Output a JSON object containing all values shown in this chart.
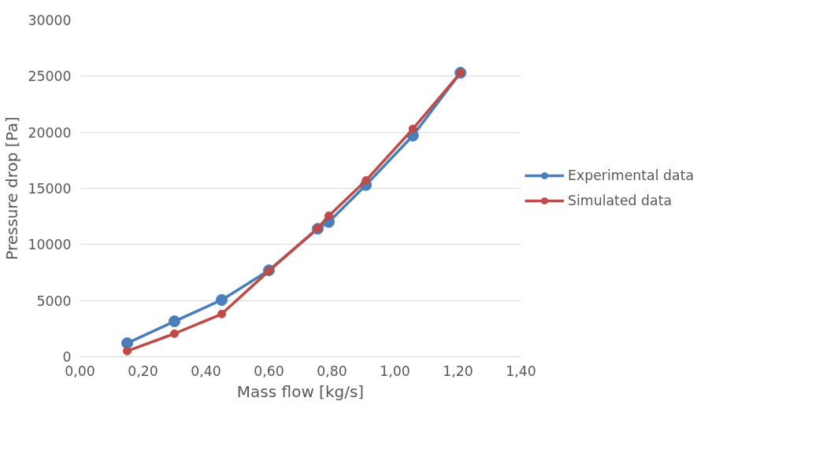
{
  "chart_data": {
    "type": "line",
    "xlabel": "Mass flow [kg/s]",
    "ylabel": "Pressure drop [Pa]",
    "xlim": [
      0,
      1.4
    ],
    "ylim": [
      0,
      30000
    ],
    "xticks": [
      {
        "value": 0,
        "label": "0,00"
      },
      {
        "value": 0.2,
        "label": "0,20"
      },
      {
        "value": 0.4,
        "label": "0,40"
      },
      {
        "value": 0.6,
        "label": "0,60"
      },
      {
        "value": 0.8,
        "label": "0,80"
      },
      {
        "value": 1.0,
        "label": "1,00"
      },
      {
        "value": 1.2,
        "label": "1,20"
      },
      {
        "value": 1.4,
        "label": "1,40"
      }
    ],
    "yticks": [
      0,
      5000,
      10000,
      15000,
      20000,
      25000,
      30000
    ],
    "grid": "y",
    "legend": "right",
    "marker": "circle",
    "line_style": "solid",
    "x": [
      0.15,
      0.3,
      0.45,
      0.6,
      0.755,
      0.79,
      0.908,
      1.057,
      1.208
    ],
    "series": [
      {
        "name": "Experimental data",
        "color": "#4a7ebb",
        "values": [
          1200,
          3150,
          5050,
          7700,
          11400,
          12000,
          15300,
          19700,
          25300
        ]
      },
      {
        "name": "Simulated data",
        "color": "#be4b48",
        "values": [
          500,
          2050,
          3800,
          7650,
          11450,
          12550,
          15700,
          20300,
          25300
        ]
      }
    ]
  }
}
